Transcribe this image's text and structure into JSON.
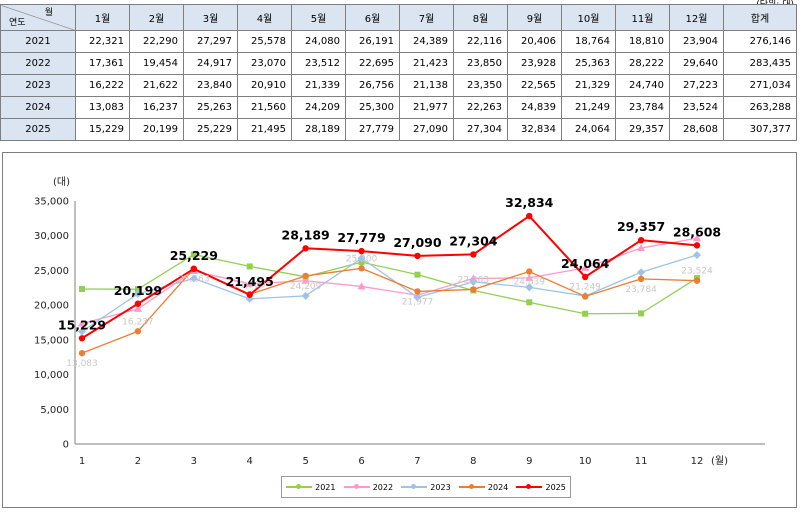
{
  "table": {
    "corner_month": "월",
    "corner_year": "연도",
    "unit_note": "(단위: 대)",
    "headers": [
      "1월",
      "2월",
      "3월",
      "4월",
      "5월",
      "6월",
      "7월",
      "8월",
      "9월",
      "10월",
      "11월",
      "12월",
      "합계"
    ],
    "rows": [
      {
        "year": "2021",
        "cells": [
          "22,321",
          "22,290",
          "27,297",
          "25,578",
          "24,080",
          "26,191",
          "24,389",
          "22,116",
          "20,406",
          "18,764",
          "18,810",
          "23,904",
          "276,146"
        ]
      },
      {
        "year": "2022",
        "cells": [
          "17,361",
          "19,454",
          "24,917",
          "23,070",
          "23,512",
          "22,695",
          "21,423",
          "23,850",
          "23,928",
          "25,363",
          "28,222",
          "29,640",
          "283,435"
        ]
      },
      {
        "year": "2023",
        "cells": [
          "16,222",
          "21,622",
          "23,840",
          "20,910",
          "21,339",
          "26,756",
          "21,138",
          "23,350",
          "22,565",
          "21,329",
          "24,740",
          "27,223",
          "271,034"
        ]
      },
      {
        "year": "2024",
        "cells": [
          "13,083",
          "16,237",
          "25,263",
          "21,560",
          "24,209",
          "25,300",
          "21,977",
          "22,263",
          "24,839",
          "21,249",
          "23,784",
          "23,524",
          "263,288"
        ]
      },
      {
        "year": "2025",
        "cells": [
          "15,229",
          "20,199",
          "25,229",
          "21,495",
          "28,189",
          "27,779",
          "27,090",
          "27,304",
          "32,834",
          "24,064",
          "29,357",
          "28,608",
          "307,377"
        ]
      }
    ]
  },
  "chart_data": {
    "type": "line",
    "ylabel": "(대)",
    "xlabel": "(월)",
    "x": [
      1,
      2,
      3,
      4,
      5,
      6,
      7,
      8,
      9,
      10,
      11,
      12
    ],
    "ylim": [
      0,
      35000
    ],
    "yticks": [
      0,
      5000,
      10000,
      15000,
      20000,
      25000,
      30000,
      35000
    ],
    "ytick_labels": [
      "0",
      "5,000",
      "10,000",
      "15,000",
      "20,000",
      "25,000",
      "30,000",
      "35,000"
    ],
    "grid": false,
    "legend_position": "bottom",
    "series": [
      {
        "name": "2021",
        "color": "#92d050",
        "marker": "square",
        "values": [
          22321,
          22290,
          27297,
          25578,
          24080,
          26191,
          24389,
          22116,
          20406,
          18764,
          18810,
          23904
        ]
      },
      {
        "name": "2022",
        "color": "#ff99cc",
        "marker": "triangle",
        "values": [
          17361,
          19454,
          24917,
          23070,
          23512,
          22695,
          21423,
          23850,
          23928,
          25363,
          28222,
          29640
        ]
      },
      {
        "name": "2023",
        "color": "#9dc3e6",
        "marker": "diamond",
        "values": [
          16222,
          21622,
          23840,
          20910,
          21339,
          26756,
          21138,
          23350,
          22565,
          21329,
          24740,
          27223
        ]
      },
      {
        "name": "2024",
        "color": "#ed7d31",
        "marker": "circle",
        "values": [
          13083,
          16237,
          25263,
          21560,
          24209,
          25300,
          21977,
          22263,
          24839,
          21249,
          23784,
          23524
        ]
      },
      {
        "name": "2025",
        "color": "#ff0000",
        "marker": "circle",
        "values": [
          15229,
          20199,
          25229,
          21495,
          28189,
          27779,
          27090,
          27304,
          32834,
          24064,
          29357,
          28608
        ]
      }
    ],
    "data_labels_bold": [
      {
        "series": "2025",
        "index": 0,
        "text": "15,229"
      },
      {
        "series": "2025",
        "index": 1,
        "text": "20,199"
      },
      {
        "series": "2025",
        "index": 2,
        "text": "25,229"
      },
      {
        "series": "2025",
        "index": 3,
        "text": "21,495"
      },
      {
        "series": "2025",
        "index": 4,
        "text": "28,189"
      },
      {
        "series": "2025",
        "index": 5,
        "text": "27,779"
      },
      {
        "series": "2025",
        "index": 6,
        "text": "27,090"
      },
      {
        "series": "2025",
        "index": 7,
        "text": "27,304"
      },
      {
        "series": "2025",
        "index": 8,
        "text": "32,834"
      },
      {
        "series": "2025",
        "index": 9,
        "text": "24,064"
      },
      {
        "series": "2025",
        "index": 10,
        "text": "29,357"
      },
      {
        "series": "2025",
        "index": 11,
        "text": "28,608"
      }
    ],
    "data_labels_faint": [
      {
        "series": "2024",
        "index": 0,
        "text": "13,083"
      },
      {
        "series": "2024",
        "index": 1,
        "text": "16,237"
      },
      {
        "series": "2024",
        "index": 2,
        "text": "25,263"
      },
      {
        "series": "2024",
        "index": 3,
        "text": "21,560"
      },
      {
        "series": "2024",
        "index": 4,
        "text": "24,209"
      },
      {
        "series": "2024",
        "index": 5,
        "text": "25,300"
      },
      {
        "series": "2024",
        "index": 6,
        "text": "21,977"
      },
      {
        "series": "2024",
        "index": 7,
        "text": "22,263"
      },
      {
        "series": "2024",
        "index": 8,
        "text": "24,839"
      },
      {
        "series": "2024",
        "index": 9,
        "text": "21,249"
      },
      {
        "series": "2024",
        "index": 10,
        "text": "23,784"
      },
      {
        "series": "2024",
        "index": 11,
        "text": "23,524"
      }
    ]
  }
}
